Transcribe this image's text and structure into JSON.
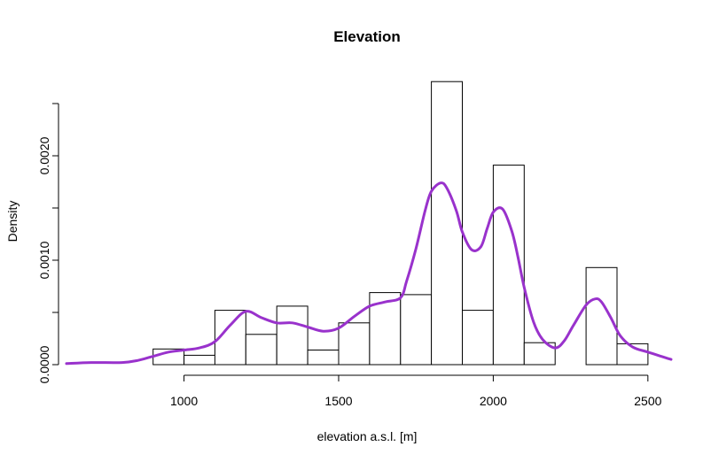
{
  "chart_data": {
    "type": "histogram",
    "title": "Elevation",
    "xlabel": "elevation a.s.l. [m]",
    "ylabel": "Density",
    "xlim": [
      620,
      2575
    ],
    "ylim": [
      0,
      0.0025
    ],
    "x_ticks": [
      1000,
      1500,
      2000,
      2500
    ],
    "x_tick_labels": [
      "1000",
      "1500",
      "2000",
      "2500"
    ],
    "y_ticks": [
      0.0,
      0.001,
      0.002
    ],
    "y_tick_labels": [
      "0.0000",
      "0.0010",
      "0.0020"
    ],
    "y_axis_max": 0.0025,
    "grid": false,
    "bins": [
      {
        "x0": 900,
        "x1": 1000,
        "density": 0.00015
      },
      {
        "x0": 1000,
        "x1": 1100,
        "density": 9e-05
      },
      {
        "x0": 1100,
        "x1": 1200,
        "density": 0.00052
      },
      {
        "x0": 1200,
        "x1": 1300,
        "density": 0.00029
      },
      {
        "x0": 1300,
        "x1": 1400,
        "density": 0.00056
      },
      {
        "x0": 1400,
        "x1": 1500,
        "density": 0.00014
      },
      {
        "x0": 1500,
        "x1": 1600,
        "density": 0.0004
      },
      {
        "x0": 1600,
        "x1": 1700,
        "density": 0.00069
      },
      {
        "x0": 1700,
        "x1": 1800,
        "density": 0.00067
      },
      {
        "x0": 1800,
        "x1": 1900,
        "density": 0.00271
      },
      {
        "x0": 1900,
        "x1": 2000,
        "density": 0.00052
      },
      {
        "x0": 2000,
        "x1": 2100,
        "density": 0.00191
      },
      {
        "x0": 2100,
        "x1": 2200,
        "density": 0.00021
      },
      {
        "x0": 2200,
        "x1": 2300,
        "density": 0.0
      },
      {
        "x0": 2300,
        "x1": 2400,
        "density": 0.00093
      },
      {
        "x0": 2400,
        "x1": 2500,
        "density": 0.0002
      }
    ],
    "density_curve": {
      "color": "#9932CC",
      "x": [
        620,
        700,
        800,
        850,
        900,
        950,
        1000,
        1050,
        1100,
        1150,
        1200,
        1250,
        1300,
        1350,
        1400,
        1450,
        1500,
        1550,
        1600,
        1650,
        1700,
        1720,
        1750,
        1780,
        1800,
        1830,
        1850,
        1880,
        1900,
        1930,
        1960,
        1980,
        2000,
        2030,
        2060,
        2080,
        2100,
        2130,
        2160,
        2200,
        2230,
        2260,
        2300,
        2330,
        2350,
        2380,
        2410,
        2450,
        2500,
        2575
      ],
      "y": [
        1e-05,
        2e-05,
        2e-05,
        4e-05,
        8e-05,
        0.00012,
        0.00014,
        0.00016,
        0.00022,
        0.00038,
        0.00051,
        0.00045,
        0.0004,
        0.0004,
        0.00036,
        0.00032,
        0.00035,
        0.00046,
        0.00056,
        0.0006,
        0.00064,
        0.0008,
        0.00111,
        0.00148,
        0.00166,
        0.00174,
        0.00169,
        0.00148,
        0.00127,
        0.0011,
        0.00113,
        0.0013,
        0.00146,
        0.00149,
        0.00128,
        0.00103,
        0.00074,
        0.00041,
        0.00024,
        0.00016,
        0.00023,
        0.00038,
        0.00057,
        0.00063,
        0.0006,
        0.00045,
        0.00028,
        0.00017,
        0.00012,
        5e-05
      ]
    }
  }
}
